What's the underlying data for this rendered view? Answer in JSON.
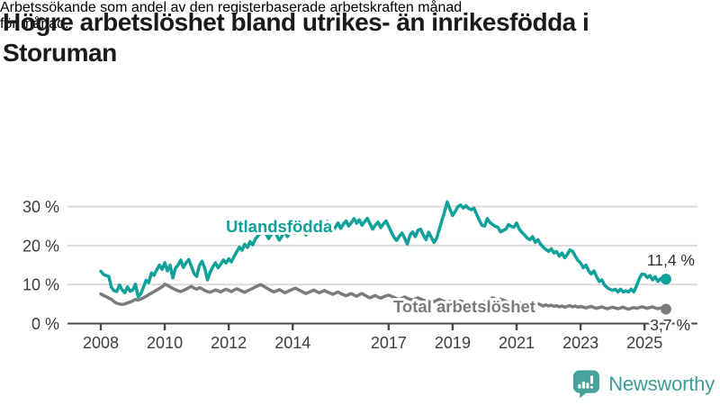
{
  "header": {
    "title_lines": [
      "Högre arbetslöshet bland utrikes- än inrikesfödda i",
      "Storuman"
    ],
    "subtitle_lines": [
      "Arbetssökande som andel av den registerbaserade arbetskraften månad",
      "för månad."
    ]
  },
  "footer": {
    "brand_name": "Newsworthy",
    "logo_icon": "bar-chart-speech-bubble-icon",
    "brand_color": "#3f9d96"
  },
  "colors": {
    "series_foreign_born": "#10a19a",
    "series_total": "#7a7b7d",
    "grid": "#d9d9d9",
    "axis": "#4a4a4a",
    "title_text": "#1a1a1a",
    "value_label_text": "#333333"
  },
  "chart_data": {
    "type": "line",
    "unit": "%",
    "frequency": "monthly",
    "x_start": 2008.0,
    "x_step": 0.0833,
    "ylim": [
      0,
      33
    ],
    "grid": "horizontal",
    "yticks": [
      {
        "value": 0,
        "label": "0 %"
      },
      {
        "value": 10,
        "label": "10 %"
      },
      {
        "value": 20,
        "label": "20 %"
      },
      {
        "value": 30,
        "label": "30 %"
      }
    ],
    "xticks": [
      {
        "value": 2008,
        "label": "2008"
      },
      {
        "value": 2010,
        "label": "2010"
      },
      {
        "value": 2012,
        "label": "2012"
      },
      {
        "value": 2014,
        "label": "2014"
      },
      {
        "value": 2017,
        "label": "2017"
      },
      {
        "value": 2019,
        "label": "2019"
      },
      {
        "value": 2021,
        "label": "2021"
      },
      {
        "value": 2023,
        "label": "2023"
      },
      {
        "value": 2025,
        "label": "2025"
      }
    ],
    "series": [
      {
        "name": "Utlandsfödda",
        "color": "#10a19a",
        "end_label": "11,4 %",
        "end_value": 11.4,
        "values": [
          13.4,
          12.6,
          12.3,
          12.1,
          9.3,
          8.4,
          8.2,
          9.9,
          8.6,
          7.9,
          9.4,
          8.3,
          8.6,
          10.1,
          6.9,
          7.6,
          9.3,
          11.1,
          10.5,
          13.0,
          12.4,
          13.8,
          15.0,
          13.9,
          15.6,
          13.5,
          15.0,
          11.7,
          14.2,
          15.0,
          16.3,
          14.4,
          15.6,
          16.4,
          14.6,
          12.8,
          12.1,
          14.9,
          16.0,
          14.2,
          11.2,
          13.1,
          14.5,
          15.6,
          14.3,
          15.2,
          16.3,
          15.5,
          16.6,
          15.8,
          17.2,
          18.4,
          19.6,
          18.8,
          20.3,
          19.5,
          21.0,
          20.2,
          21.7,
          22.5,
          23.3,
          24.2,
          23.0,
          21.8,
          22.9,
          23.9,
          22.6,
          21.4,
          22.5,
          23.5,
          22.3,
          23.2,
          24.0,
          23.1,
          24.3,
          25.3,
          24.0,
          22.7,
          23.9,
          25.0,
          23.7,
          24.8,
          25.6,
          24.3,
          25.4,
          26.2,
          24.9,
          23.6,
          24.7,
          25.8,
          24.4,
          25.5,
          26.3,
          25.0,
          25.9,
          26.9,
          25.7,
          26.6,
          25.2,
          26.1,
          27.0,
          25.6,
          24.2,
          25.3,
          26.0,
          24.6,
          25.5,
          26.3,
          24.9,
          23.5,
          22.1,
          21.3,
          22.4,
          23.2,
          21.9,
          20.4,
          22.7,
          23.5,
          22.3,
          23.9,
          24.2,
          22.7,
          21.5,
          23.4,
          22.1,
          20.8,
          21.9,
          24.2,
          26.5,
          28.8,
          31.2,
          29.3,
          27.7,
          28.8,
          30.0,
          30.4,
          29.6,
          30.2,
          29.5,
          29.2,
          29.6,
          28.0,
          26.5,
          25.2,
          25.0,
          26.9,
          25.9,
          25.4,
          24.9,
          24.7,
          23.5,
          23.9,
          24.2,
          25.4,
          24.9,
          24.7,
          25.8,
          24.2,
          23.4,
          22.7,
          21.9,
          21.5,
          22.3,
          20.8,
          21.5,
          20.3,
          19.6,
          19.0,
          18.5,
          19.2,
          18.1,
          18.5,
          17.3,
          18.1,
          16.9,
          17.7,
          18.9,
          18.5,
          17.3,
          16.2,
          15.5,
          14.3,
          15.0,
          13.5,
          12.7,
          13.5,
          12.0,
          10.8,
          11.2,
          9.8,
          9.2,
          8.8,
          8.5,
          8.8,
          8.1,
          8.8,
          8.1,
          8.4,
          8.1,
          8.8,
          8.1,
          9.7,
          11.5,
          12.7,
          12.6,
          11.8,
          12.3,
          11.2,
          12.0,
          10.8,
          11.5,
          11.0,
          11.4
        ]
      },
      {
        "name": "Total arbetslöshet",
        "color": "#7a7b7d",
        "end_label": "3,7 %",
        "end_value": 3.7,
        "values": [
          7.6,
          7.2,
          6.9,
          6.5,
          6.2,
          5.6,
          5.2,
          5.0,
          4.9,
          5.0,
          5.3,
          5.5,
          5.8,
          6.2,
          6.0,
          6.3,
          6.6,
          7.0,
          7.4,
          7.8,
          8.2,
          8.6,
          9.0,
          9.4,
          10.1,
          9.8,
          9.4,
          9.0,
          8.7,
          8.4,
          8.2,
          8.5,
          8.8,
          9.2,
          9.5,
          9.1,
          8.8,
          9.2,
          8.9,
          8.5,
          8.2,
          8.0,
          8.3,
          8.6,
          8.4,
          8.1,
          8.5,
          8.8,
          8.5,
          8.2,
          8.6,
          8.9,
          8.6,
          8.3,
          8.0,
          8.4,
          8.7,
          9.0,
          9.4,
          9.7,
          10.0,
          9.6,
          9.2,
          8.8,
          8.4,
          8.1,
          8.4,
          8.7,
          8.3,
          7.9,
          8.2,
          8.5,
          8.8,
          9.1,
          8.7,
          8.4,
          8.0,
          7.7,
          8.0,
          8.3,
          8.6,
          8.2,
          7.9,
          8.2,
          8.5,
          8.1,
          7.8,
          7.5,
          7.8,
          8.1,
          7.7,
          7.4,
          7.1,
          7.4,
          7.7,
          7.3,
          7.0,
          7.4,
          7.7,
          7.3,
          6.9,
          6.6,
          6.9,
          7.2,
          6.8,
          6.5,
          6.8,
          7.1,
          7.3,
          7.0,
          6.7,
          6.4,
          6.2,
          6.5,
          6.8,
          6.5,
          6.2,
          6.0,
          6.3,
          6.6,
          6.3,
          6.0,
          5.8,
          6.1,
          5.9,
          5.6,
          5.9,
          6.2,
          5.9,
          5.6,
          5.4,
          5.7,
          5.5,
          5.2,
          5.5,
          5.8,
          5.5,
          5.2,
          5.0,
          5.3,
          5.6,
          5.3,
          5.0,
          5.3,
          5.6,
          5.9,
          6.3,
          6.6,
          6.3,
          6.0,
          6.3,
          6.0,
          5.7,
          5.4,
          5.7,
          5.4,
          5.1,
          5.4,
          5.1,
          4.8,
          5.1,
          4.8,
          4.5,
          4.8,
          5.1,
          4.8,
          4.5,
          4.8,
          4.5,
          4.7,
          4.4,
          4.6,
          4.3,
          4.5,
          4.2,
          4.4,
          4.6,
          4.3,
          4.5,
          4.2,
          4.4,
          4.2,
          4.0,
          4.2,
          4.4,
          4.1,
          3.9,
          4.1,
          4.3,
          4.0,
          3.8,
          4.0,
          4.2,
          4.0,
          3.8,
          4.0,
          4.2,
          3.9,
          3.7,
          3.9,
          4.1,
          3.9,
          4.1,
          4.3,
          4.1,
          3.9,
          4.1,
          4.3,
          4.0,
          3.8,
          4.0,
          3.8,
          3.7
        ]
      }
    ]
  }
}
